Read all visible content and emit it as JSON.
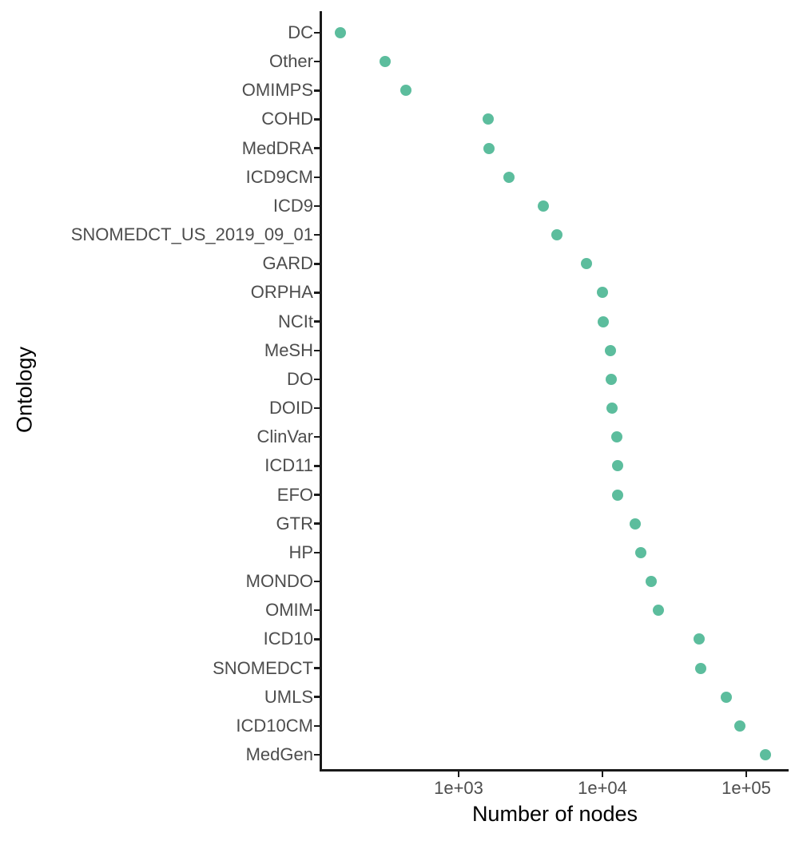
{
  "chart_data": {
    "type": "scatter",
    "subtype": "cleveland-dot-plot",
    "orientation": "horizontal",
    "title": "",
    "xlabel": "Number of nodes",
    "ylabel": "Ontology",
    "x_scale": "log10",
    "xlim": [
      110,
      197000
    ],
    "x_ticks": [
      {
        "value": 1000,
        "label": "1e+03"
      },
      {
        "value": 10000,
        "label": "1e+04"
      },
      {
        "value": 100000,
        "label": "1e+05"
      }
    ],
    "grid": false,
    "legend": false,
    "point_color": "#5CBD9D",
    "axis_color": "#1A1A1A",
    "tick_label_color": "#4D4D4D",
    "title_color": "#000000",
    "categories": [
      "DC",
      "Other",
      "OMIMPS",
      "COHD",
      "MedDRA",
      "ICD9CM",
      "ICD9",
      "SNOMEDCT_US_2019_09_01",
      "GARD",
      "ORPHA",
      "NCIt",
      "MeSH",
      "DO",
      "DOID",
      "ClinVar",
      "ICD11",
      "EFO",
      "GTR",
      "HP",
      "MONDO",
      "OMIM",
      "ICD10",
      "SNOMEDCT",
      "UMLS",
      "ICD10CM",
      "MedGen"
    ],
    "values": [
      150,
      310,
      430,
      1600,
      1630,
      2240,
      3900,
      4800,
      7700,
      10000,
      10100,
      11400,
      11500,
      11700,
      12600,
      12700,
      12800,
      16900,
      18500,
      21800,
      24500,
      47000,
      48200,
      72600,
      90300,
      136000
    ]
  }
}
